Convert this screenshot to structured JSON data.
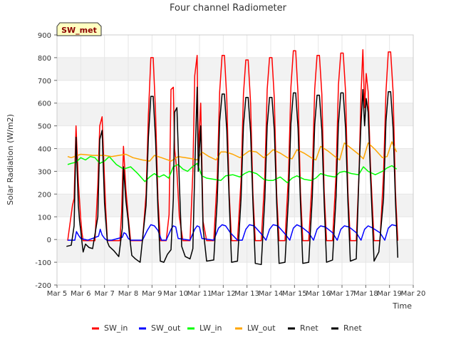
{
  "chart_data": {
    "type": "line",
    "title": "Four channel Radiometer",
    "xlabel": "Time",
    "ylabel": "Solar Radiation (W/m2)",
    "badge": "SW_met",
    "xlim": [
      5,
      20
    ],
    "ylim": [
      -200,
      900
    ],
    "xticks": [
      5,
      6,
      7,
      8,
      9,
      10,
      11,
      12,
      13,
      14,
      15,
      16,
      17,
      18,
      19,
      20
    ],
    "xtick_labels": [
      "Mar 5",
      "Mar 6",
      "Mar 7",
      "Mar 8",
      "Mar 9",
      "Mar 10",
      "Mar 11",
      "Mar 12",
      "Mar 13",
      "Mar 14",
      "Mar 15",
      "Mar 16",
      "Mar 17",
      "Mar 18",
      "Mar 19",
      "Mar 20"
    ],
    "yticks": [
      -200,
      -100,
      0,
      100,
      200,
      300,
      400,
      500,
      600,
      700,
      800,
      900
    ],
    "ytick_labels": [
      "-200",
      "-100",
      "0",
      "100",
      "200",
      "300",
      "400",
      "500",
      "600",
      "700",
      "800",
      "900"
    ],
    "grid": true,
    "legend_position": "bottom",
    "series": [
      {
        "name": "SW_in",
        "color": "#ff0000",
        "x": [
          5.45,
          5.65,
          5.72,
          5.8,
          5.9,
          6.0,
          6.05,
          6.1,
          6.3,
          6.6,
          6.72,
          6.8,
          6.9,
          7.0,
          7.05,
          7.12,
          7.3,
          7.65,
          7.72,
          7.8,
          7.9,
          8.0,
          8.1,
          8.3,
          8.6,
          8.75,
          8.85,
          8.95,
          9.05,
          9.15,
          9.25,
          9.35,
          9.6,
          9.72,
          9.8,
          9.9,
          9.95,
          10.05,
          10.15,
          10.3,
          10.6,
          10.72,
          10.8,
          10.9,
          10.95,
          11.05,
          11.15,
          11.3,
          11.6,
          11.75,
          11.85,
          11.95,
          12.05,
          12.15,
          12.25,
          12.35,
          12.6,
          12.75,
          12.85,
          12.95,
          13.05,
          13.15,
          13.25,
          13.35,
          13.6,
          13.75,
          13.85,
          13.95,
          14.05,
          14.15,
          14.25,
          14.35,
          14.6,
          14.75,
          14.85,
          14.95,
          15.05,
          15.15,
          15.25,
          15.35,
          15.6,
          15.75,
          15.85,
          15.95,
          16.05,
          16.15,
          16.25,
          16.35,
          16.6,
          16.75,
          16.85,
          16.95,
          17.05,
          17.15,
          17.25,
          17.35,
          17.6,
          17.72,
          17.8,
          17.88,
          17.95,
          18.02,
          18.1,
          18.2,
          18.35,
          18.6,
          18.75,
          18.85,
          18.95,
          19.05,
          19.15,
          19.25,
          19.35
        ],
        "y": [
          -5,
          150,
          180,
          500,
          250,
          90,
          30,
          -5,
          -5,
          -5,
          240,
          500,
          540,
          260,
          140,
          -5,
          -5,
          -5,
          120,
          410,
          220,
          100,
          -5,
          -5,
          -5,
          200,
          550,
          800,
          800,
          560,
          180,
          -5,
          -5,
          110,
          660,
          670,
          400,
          300,
          100,
          -5,
          -5,
          300,
          720,
          810,
          380,
          600,
          80,
          -5,
          -5,
          280,
          650,
          810,
          810,
          620,
          200,
          -5,
          -5,
          260,
          640,
          790,
          790,
          600,
          200,
          -5,
          -5,
          280,
          660,
          800,
          800,
          620,
          200,
          -5,
          -5,
          290,
          670,
          830,
          830,
          640,
          210,
          -5,
          -5,
          280,
          660,
          810,
          810,
          640,
          210,
          -5,
          -5,
          290,
          680,
          820,
          820,
          650,
          210,
          -5,
          -5,
          300,
          640,
          835,
          580,
          730,
          650,
          320,
          -5,
          -5,
          290,
          650,
          825,
          825,
          650,
          210,
          -5
        ]
      },
      {
        "name": "SW_out",
        "color": "#0000ff",
        "x": [
          5.45,
          5.75,
          5.82,
          5.9,
          6.0,
          6.3,
          6.75,
          6.82,
          6.9,
          7.0,
          7.1,
          7.3,
          7.75,
          7.82,
          7.9,
          8.0,
          8.1,
          8.6,
          8.8,
          8.95,
          9.1,
          9.25,
          9.4,
          9.6,
          9.8,
          9.9,
          10.0,
          10.1,
          10.6,
          10.8,
          10.9,
          11.0,
          11.1,
          11.6,
          11.8,
          11.95,
          12.1,
          12.3,
          12.6,
          12.8,
          12.95,
          13.1,
          13.3,
          13.6,
          13.8,
          13.95,
          14.1,
          14.3,
          14.6,
          14.8,
          14.95,
          15.1,
          15.3,
          15.6,
          15.8,
          15.95,
          16.1,
          16.3,
          16.6,
          16.8,
          16.95,
          17.1,
          17.3,
          17.6,
          17.8,
          17.95,
          18.1,
          18.3,
          18.6,
          18.8,
          18.95,
          19.1,
          19.3
        ],
        "y": [
          -3,
          -3,
          35,
          20,
          5,
          -3,
          15,
          45,
          20,
          5,
          -3,
          -3,
          10,
          30,
          25,
          5,
          -3,
          -3,
          40,
          65,
          60,
          40,
          -3,
          -3,
          45,
          60,
          55,
          5,
          -3,
          45,
          60,
          55,
          5,
          -3,
          50,
          65,
          60,
          30,
          -3,
          -3,
          45,
          65,
          60,
          25,
          -3,
          45,
          65,
          60,
          25,
          -3,
          50,
          65,
          55,
          30,
          -3,
          45,
          60,
          55,
          30,
          -3,
          45,
          60,
          55,
          30,
          -3,
          45,
          60,
          50,
          30,
          -3,
          50,
          65,
          60
        ]
      },
      {
        "name": "LW_in",
        "color": "#00ff00",
        "x": [
          5.45,
          5.6,
          5.8,
          6.0,
          6.2,
          6.4,
          6.6,
          6.8,
          7.0,
          7.2,
          7.5,
          7.8,
          8.1,
          8.4,
          8.7,
          8.9,
          9.1,
          9.3,
          9.5,
          9.7,
          9.9,
          10.1,
          10.3,
          10.5,
          10.7,
          10.9,
          11.1,
          11.3,
          11.6,
          11.9,
          12.1,
          12.4,
          12.7,
          12.9,
          13.1,
          13.4,
          13.7,
          13.9,
          14.1,
          14.4,
          14.7,
          14.9,
          15.1,
          15.4,
          15.7,
          15.9,
          16.1,
          16.4,
          16.7,
          16.9,
          17.1,
          17.4,
          17.7,
          17.9,
          18.1,
          18.4,
          18.7,
          18.9,
          19.1,
          19.3
        ],
        "y": [
          330,
          335,
          340,
          360,
          350,
          365,
          360,
          335,
          345,
          365,
          330,
          310,
          320,
          290,
          255,
          275,
          290,
          275,
          285,
          270,
          320,
          330,
          310,
          300,
          320,
          335,
          280,
          270,
          265,
          260,
          280,
          285,
          275,
          290,
          300,
          290,
          265,
          260,
          260,
          275,
          250,
          270,
          280,
          265,
          260,
          270,
          290,
          280,
          275,
          295,
          300,
          290,
          285,
          320,
          300,
          285,
          300,
          315,
          325,
          310
        ]
      },
      {
        "name": "LW_out",
        "color": "#ffa500",
        "x": [
          5.45,
          5.6,
          6.0,
          6.5,
          7.0,
          7.3,
          7.6,
          7.9,
          8.2,
          8.6,
          8.9,
          9.1,
          9.4,
          9.8,
          10.1,
          10.4,
          10.7,
          10.9,
          11.1,
          11.4,
          11.7,
          11.9,
          12.1,
          12.4,
          12.7,
          12.9,
          13.1,
          13.4,
          13.7,
          13.9,
          14.1,
          14.4,
          14.7,
          14.9,
          15.1,
          15.4,
          15.7,
          15.9,
          16.1,
          16.4,
          16.7,
          16.9,
          17.1,
          17.4,
          17.7,
          17.9,
          18.1,
          18.4,
          18.7,
          18.9,
          19.1,
          19.3
        ],
        "y": [
          365,
          360,
          375,
          370,
          370,
          365,
          370,
          375,
          360,
          350,
          345,
          370,
          360,
          345,
          365,
          360,
          355,
          350,
          385,
          365,
          350,
          385,
          385,
          375,
          360,
          375,
          390,
          385,
          360,
          375,
          395,
          380,
          360,
          355,
          395,
          380,
          360,
          350,
          410,
          390,
          365,
          350,
          425,
          400,
          375,
          355,
          425,
          395,
          360,
          365,
          430,
          385
        ]
      },
      {
        "name": "Rnet",
        "color": "#000000",
        "x": [
          5.4,
          5.6,
          5.72,
          5.8,
          5.9,
          5.95,
          6.0,
          6.05,
          6.1,
          6.2,
          6.35,
          6.5,
          6.72,
          6.8,
          6.9,
          7.0,
          7.05,
          7.12,
          7.2,
          7.4,
          7.6,
          7.75,
          7.8,
          7.9,
          8.0,
          8.05,
          8.15,
          8.3,
          8.5,
          8.75,
          8.85,
          8.95,
          9.05,
          9.15,
          9.25,
          9.35,
          9.5,
          9.65,
          9.8,
          9.9,
          9.95,
          10.05,
          10.15,
          10.25,
          10.4,
          10.6,
          10.72,
          10.8,
          10.9,
          10.95,
          11.05,
          11.15,
          11.3,
          11.6,
          11.75,
          11.85,
          11.95,
          12.05,
          12.15,
          12.25,
          12.35,
          12.6,
          12.75,
          12.85,
          12.95,
          13.05,
          13.15,
          13.25,
          13.35,
          13.6,
          13.75,
          13.85,
          13.95,
          14.05,
          14.15,
          14.25,
          14.35,
          14.6,
          14.75,
          14.85,
          14.95,
          15.05,
          15.15,
          15.25,
          15.35,
          15.6,
          15.75,
          15.85,
          15.95,
          16.05,
          16.15,
          16.25,
          16.35,
          16.6,
          16.75,
          16.85,
          16.95,
          17.05,
          17.15,
          17.25,
          17.35,
          17.6,
          17.72,
          17.8,
          17.88,
          17.95,
          18.02,
          18.1,
          18.2,
          18.35,
          18.55,
          18.75,
          18.85,
          18.95,
          19.05,
          19.15,
          19.25,
          19.35
        ],
        "y": [
          -30,
          -25,
          60,
          450,
          150,
          80,
          40,
          -10,
          -55,
          -20,
          -35,
          -40,
          100,
          440,
          480,
          160,
          90,
          -10,
          -30,
          -50,
          -75,
          50,
          320,
          170,
          80,
          20,
          -70,
          -85,
          -100,
          150,
          450,
          630,
          630,
          440,
          130,
          -95,
          -100,
          -65,
          -45,
          180,
          560,
          580,
          250,
          -30,
          -75,
          -85,
          -40,
          300,
          670,
          300,
          500,
          50,
          -95,
          -90,
          180,
          520,
          640,
          640,
          480,
          170,
          -100,
          -95,
          180,
          500,
          625,
          625,
          470,
          160,
          -105,
          -110,
          180,
          500,
          625,
          625,
          480,
          160,
          -105,
          -100,
          190,
          510,
          645,
          645,
          490,
          160,
          -105,
          -100,
          185,
          505,
          635,
          635,
          480,
          160,
          -100,
          -90,
          190,
          510,
          645,
          645,
          490,
          165,
          -95,
          -85,
          300,
          510,
          660,
          500,
          620,
          560,
          280,
          -95,
          -55,
          180,
          520,
          650,
          650,
          490,
          170,
          -80
        ]
      }
    ],
    "legend": [
      {
        "label": "SW_in",
        "color": "#ff0000"
      },
      {
        "label": "SW_out",
        "color": "#0000ff"
      },
      {
        "label": "LW_in",
        "color": "#00ff00"
      },
      {
        "label": "LW_out",
        "color": "#ffa500"
      },
      {
        "label": "Rnet",
        "color": "#000000"
      },
      {
        "label": "Rnet",
        "color": "#000000"
      }
    ]
  }
}
